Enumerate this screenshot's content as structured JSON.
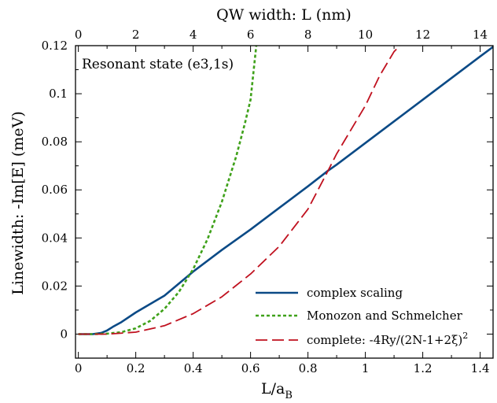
{
  "chart_data": {
    "type": "line",
    "title": "",
    "xlabel": "L/a",
    "xlabel_sub": "B",
    "ylabel": "Linewidth: -Im[E] (meV)",
    "x2label": "QW width: L (nm)",
    "xlim": [
      -0.01,
      1.445
    ],
    "ylim": [
      -0.01,
      0.12
    ],
    "x2lim": [
      -0.1,
      14.45
    ],
    "xticks": [
      0,
      0.2,
      0.4,
      0.6,
      0.8,
      1,
      1.2,
      1.4
    ],
    "xtick_labels": [
      "0",
      "0.2",
      "0.4",
      "0.6",
      "0.8",
      "1",
      "1.2",
      "1.4"
    ],
    "x2ticks": [
      0,
      2,
      4,
      6,
      8,
      10,
      12,
      14
    ],
    "x2tick_labels": [
      "0",
      "2",
      "4",
      "6",
      "8",
      "10",
      "12",
      "14"
    ],
    "yticks": [
      0,
      0.02,
      0.04,
      0.06,
      0.08,
      0.1,
      0.12
    ],
    "ytick_labels": [
      "0",
      "0.02",
      "0.04",
      "0.06",
      "0.08",
      "0.1",
      "0.12"
    ],
    "annotation": "Resonant state (e3,1s)",
    "legend_position": "bottom-right",
    "grid": false,
    "series": [
      {
        "name": "complex scaling",
        "color": "#0b4a86",
        "style": "solid",
        "x": [
          0,
          0.05,
          0.08,
          0.1,
          0.12,
          0.15,
          0.2,
          0.3,
          0.4,
          0.5,
          0.6,
          0.7,
          0.8,
          0.87,
          0.9,
          1.0,
          1.1,
          1.2,
          1.3,
          1.4,
          1.445
        ],
        "y": [
          0,
          0,
          0.0005,
          0.0015,
          0.003,
          0.005,
          0.009,
          0.016,
          0.026,
          0.035,
          0.0435,
          0.0525,
          0.0615,
          0.068,
          0.0705,
          0.0795,
          0.0885,
          0.0975,
          0.1065,
          0.1155,
          0.1195
        ]
      },
      {
        "name": "Monozon and Schmelcher",
        "color": "#3fa11a",
        "style": "dotted",
        "x": [
          0,
          0.05,
          0.1,
          0.15,
          0.2,
          0.25,
          0.3,
          0.35,
          0.4,
          0.45,
          0.5,
          0.55,
          0.58,
          0.6,
          0.62
        ],
        "y": [
          0,
          0,
          0.0002,
          0.0008,
          0.0024,
          0.0055,
          0.0105,
          0.0175,
          0.027,
          0.0395,
          0.055,
          0.074,
          0.0875,
          0.0975,
          0.12
        ]
      },
      {
        "name": "complete: -4Ry/(2N-1+2ξ)²",
        "color": "#c0111f",
        "style": "dashed",
        "x": [
          0,
          0.1,
          0.2,
          0.3,
          0.4,
          0.5,
          0.6,
          0.7,
          0.8,
          0.87,
          0.9,
          1.0,
          1.05,
          1.1,
          1.12
        ],
        "y": [
          0,
          0,
          0.0008,
          0.0035,
          0.0085,
          0.0155,
          0.025,
          0.0365,
          0.052,
          0.068,
          0.075,
          0.095,
          0.1075,
          0.1175,
          0.12
        ]
      }
    ]
  },
  "legend": {
    "items": [
      {
        "label": "complex scaling",
        "color": "#0b4a86",
        "style": "solid"
      },
      {
        "label": "Monozon and Schmelcher",
        "color": "#3fa11a",
        "style": "dotted"
      },
      {
        "label": "complete: -4Ry/(2N-1+2ξ)",
        "sup": "2",
        "color": "#c0111f",
        "style": "dashed"
      }
    ]
  }
}
